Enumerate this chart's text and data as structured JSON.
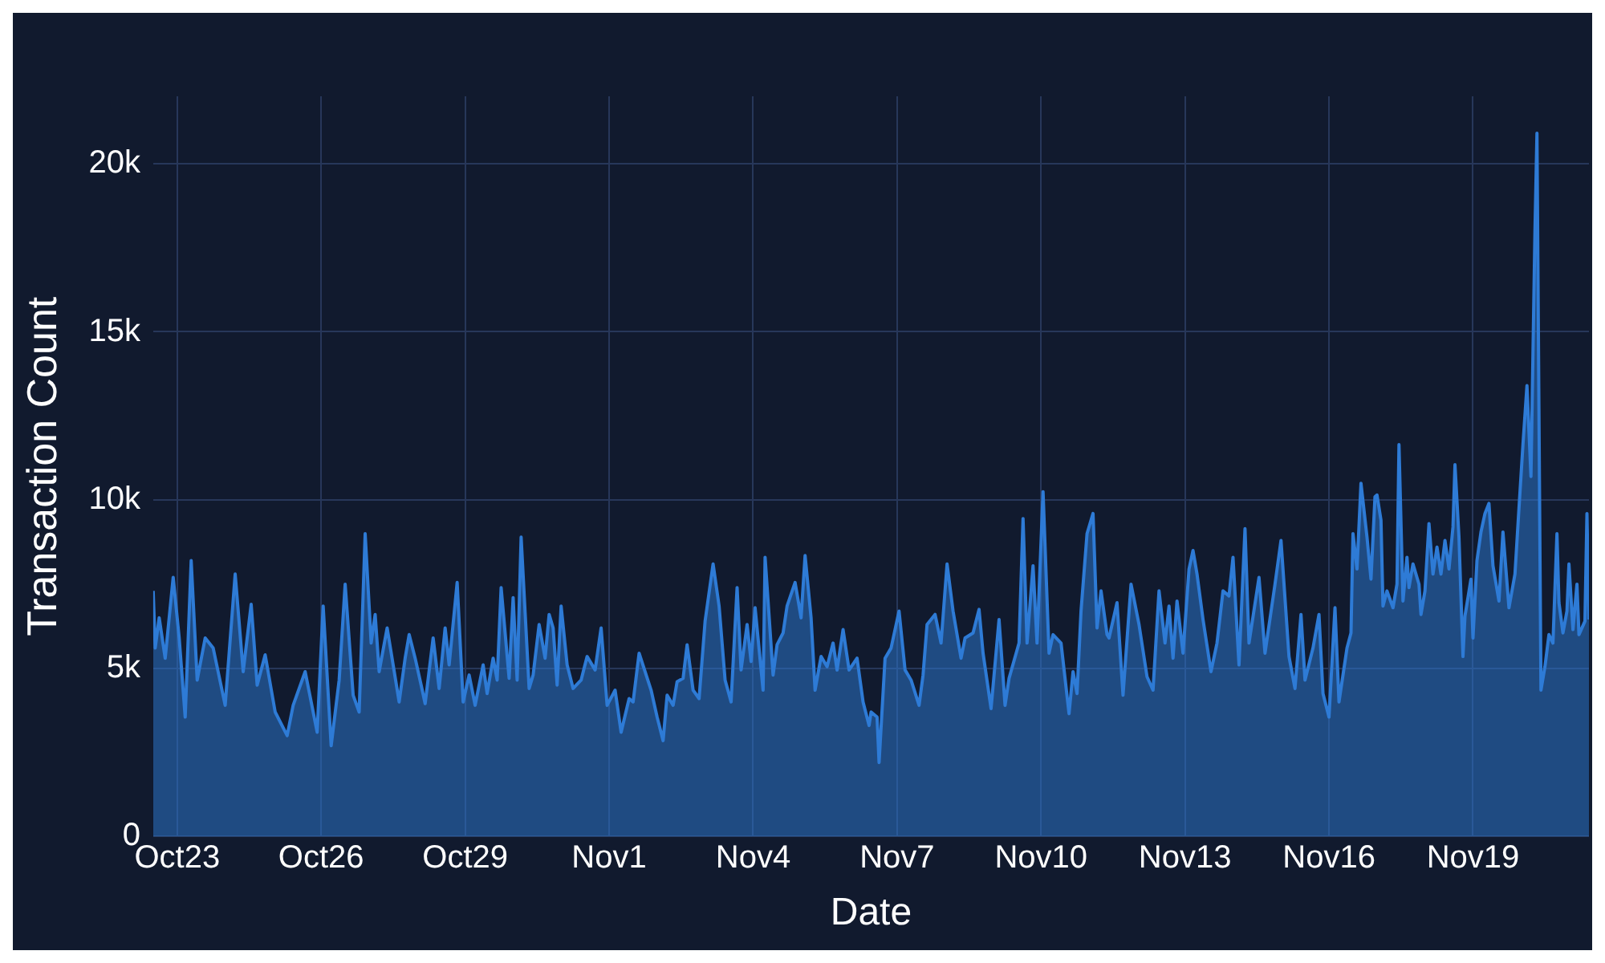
{
  "chart_data": {
    "type": "area",
    "xlabel": "Date",
    "ylabel": "Transaction Count",
    "grid": true,
    "legend": false,
    "marker": "none",
    "xlim": [
      "--10-22T12:00",
      "--11-21T10:00"
    ],
    "xticks": [
      {
        "value": "--10-23",
        "label": "Oct23"
      },
      {
        "value": "--10-26",
        "label": "Oct26"
      },
      {
        "value": "--10-29",
        "label": "Oct29"
      },
      {
        "value": "--11-01",
        "label": "Nov1"
      },
      {
        "value": "--11-04",
        "label": "Nov4"
      },
      {
        "value": "--11-07",
        "label": "Nov7"
      },
      {
        "value": "--11-10",
        "label": "Nov10"
      },
      {
        "value": "--11-13",
        "label": "Nov13"
      },
      {
        "value": "--11-16",
        "label": "Nov16"
      },
      {
        "value": "--11-19",
        "label": "Nov19"
      }
    ],
    "ylim": [
      0,
      22000
    ],
    "yticks": [
      {
        "value": 0,
        "label": "0"
      },
      {
        "value": 5000,
        "label": "5k"
      },
      {
        "value": 10000,
        "label": "10k"
      },
      {
        "value": 15000,
        "label": "15k"
      },
      {
        "value": 20000,
        "label": "20k"
      }
    ],
    "series": [
      {
        "color": "#2e7bd6",
        "x": [
          "--10-22T12:00",
          "--10-22T13:00",
          "--10-22T15:00",
          "--10-22T18:00",
          "--10-22T22:00",
          "--10-23T01:00",
          "--10-23T04:00",
          "--10-23T07:00",
          "--10-23T10:00",
          "--10-23T14:00",
          "--10-23T18:00",
          "--10-24T00:00",
          "--10-24T05:00",
          "--10-24T09:00",
          "--10-24T13:00",
          "--10-24T16:00",
          "--10-24T20:00",
          "--10-25T01:00",
          "--10-25T07:00",
          "--10-25T10:00",
          "--10-25T16:00",
          "--10-25T22:00",
          "--10-26T01:00",
          "--10-26T05:00",
          "--10-26T09:00",
          "--10-26T12:00",
          "--10-26T16:00",
          "--10-26T19:00",
          "--10-26T22:00",
          "--10-27T01:00",
          "--10-27T03:00",
          "--10-27T05:00",
          "--10-27T09:00",
          "--10-27T15:00",
          "--10-27T18:00",
          "--10-27T20:00",
          "--10-27T23:00",
          "--10-28T02:00",
          "--10-28T04:00",
          "--10-28T08:00",
          "--10-28T11:00",
          "--10-28T14:00",
          "--10-28T16:00",
          "--10-28T20:00",
          "--10-28T23:00",
          "--10-29T02:00",
          "--10-29T05:00",
          "--10-29T09:00",
          "--10-29T11:00",
          "--10-29T14:00",
          "--10-29T16:00",
          "--10-29T18:00",
          "--10-29T22:00",
          "--10-30T00:00",
          "--10-30T02:00",
          "--10-30T04:00",
          "--10-30T08:00",
          "--10-30T10:00",
          "--10-30T13:00",
          "--10-30T16:00",
          "--10-30T18:00",
          "--10-30T20:00",
          "--10-30T22:00",
          "--10-31T00:00",
          "--10-31T03:00",
          "--10-31T06:00",
          "--10-31T10:00",
          "--10-31T13:00",
          "--10-31T17:00",
          "--10-31T20:00",
          "--10-31T23:00",
          "--11-01T03:00",
          "--11-01T06:00",
          "--11-01T10:00",
          "--11-01T12:00",
          "--11-01T15:00",
          "--11-01T21:00",
          "--11-02T00:00",
          "--11-02T03:00",
          "--11-02T05:00",
          "--11-02T08:00",
          "--11-02T10:00",
          "--11-02T13:00",
          "--11-02T15:00",
          "--11-02T18:00",
          "--11-02T21:00",
          "--11-03T00:00",
          "--11-03T04:00",
          "--11-03T07:00",
          "--11-03T10:00",
          "--11-03T13:00",
          "--11-03T16:00",
          "--11-03T18:00",
          "--11-03T21:00",
          "--11-03T23:00",
          "--11-04T01:00",
          "--11-04T05:00",
          "--11-04T06:00",
          "--11-04T10:00",
          "--11-04T12:00",
          "--11-04T15:00",
          "--11-04T17:00",
          "--11-04T21:00",
          "--11-05T00:00",
          "--11-05T02:00",
          "--11-05T05:00",
          "--11-05T07:00",
          "--11-05T10:00",
          "--11-05T13:00",
          "--11-05T16:00",
          "--11-05T18:00",
          "--11-05T21:00",
          "--11-06T00:00",
          "--11-06T04:00",
          "--11-06T07:00",
          "--11-06T10:00",
          "--11-06T11:00",
          "--11-06T14:00",
          "--11-06T15:00",
          "--11-06T18:00",
          "--11-06T21:00",
          "--11-07T01:00",
          "--11-07T04:00",
          "--11-07T07:00",
          "--11-07T11:00",
          "--11-07T13:00",
          "--11-07T15:00",
          "--11-07T19:00",
          "--11-07T22:00",
          "--11-08T01:00",
          "--11-08T04:00",
          "--11-08T08:00",
          "--11-08T10:00",
          "--11-08T14:00",
          "--11-08T17:00",
          "--11-08T19:00",
          "--11-08T23:00",
          "--11-09T03:00",
          "--11-09T06:00",
          "--11-09T08:00",
          "--11-09T13:00",
          "--11-09T15:00",
          "--11-09T17:00",
          "--11-09T20:00",
          "--11-09T22:00",
          "--11-10T01:00",
          "--11-10T04:00",
          "--11-10T06:00",
          "--11-10T10:00",
          "--11-10T14:00",
          "--11-10T16:00",
          "--11-10T18:00",
          "--11-10T20:00",
          "--11-10T23:00",
          "--11-11T02:00",
          "--11-11T04:00",
          "--11-11T06:00",
          "--11-11T09:00",
          "--11-11T10:00",
          "--11-11T14:00",
          "--11-11T17:00",
          "--11-11T21:00",
          "--11-12T01:00",
          "--11-12T05:00",
          "--11-12T08:00",
          "--11-12T11:00",
          "--11-12T14:00",
          "--11-12T16:00",
          "--11-12T18:00",
          "--11-12T20:00",
          "--11-12T23:00",
          "--11-13T02:00",
          "--11-13T04:00",
          "--11-13T06:00",
          "--11-13T09:00",
          "--11-13T13:00",
          "--11-13T16:00",
          "--11-13T19:00",
          "--11-13T22:00",
          "--11-14T00:00",
          "--11-14T03:00",
          "--11-14T06:00",
          "--11-14T08:00",
          "--11-14T13:00",
          "--11-14T16:00",
          "--11-14T21:00",
          "--11-15T00:00",
          "--11-15T04:00",
          "--11-15T07:00",
          "--11-15T10:00",
          "--11-15T12:00",
          "--11-15T16:00",
          "--11-15T19:00",
          "--11-15T21:00",
          "--11-16T00:00",
          "--11-16T03:00",
          "--11-16T05:00",
          "--11-16T09:00",
          "--11-16T11:00",
          "--11-16T12:00",
          "--11-16T14:00",
          "--11-16T16:00",
          "--11-16T19:00",
          "--11-16T21:00",
          "--11-16T23:00",
          "--11-17T00:00",
          "--11-17T02:00",
          "--11-17T03:00",
          "--11-17T05:00",
          "--11-17T08:00",
          "--11-17T10:00",
          "--11-17T11:00",
          "--11-17T13:00",
          "--11-17T15:00",
          "--11-17T16:00",
          "--11-17T18:00",
          "--11-17T21:00",
          "--11-17T22:00",
          "--11-18T00:00",
          "--11-18T02:00",
          "--11-18T04:00",
          "--11-18T06:00",
          "--11-18T08:00",
          "--11-18T10:00",
          "--11-18T12:00",
          "--11-18T14:00",
          "--11-18T15:00",
          "--11-18T17:00",
          "--11-18T19:00",
          "--11-18T20:00",
          "--11-18T23:00",
          "--11-19T00:00",
          "--11-19T02:00",
          "--11-19T04:00",
          "--11-19T06:00",
          "--11-19T08:00",
          "--11-19T10:00",
          "--11-19T13:00",
          "--11-19T15:00",
          "--11-19T18:00",
          "--11-19T21:00",
          "--11-19T23:00",
          "--11-20T01:00",
          "--11-20T03:00",
          "--11-20T05:00",
          "--11-20T06:00",
          "--11-20T07:00",
          "--11-20T08:00",
          "--11-20T10:00",
          "--11-20T12:00",
          "--11-20T14:00",
          "--11-20T16:00",
          "--11-20T18:00",
          "--11-20T19:00",
          "--11-20T21:00",
          "--11-20T23:00",
          "--11-21T00:00",
          "--11-21T02:00",
          "--11-21T04:00",
          "--11-21T05:00",
          "--11-21T08:00",
          "--11-21T09:00",
          "--11-21T10:00"
        ],
        "values": [
          7300,
          5600,
          6500,
          5300,
          7700,
          5900,
          3550,
          8200,
          4650,
          5900,
          5600,
          3900,
          7800,
          4900,
          6900,
          4500,
          5400,
          3700,
          3000,
          3900,
          4900,
          3100,
          6850,
          2700,
          4650,
          7500,
          4200,
          3700,
          9000,
          5750,
          6600,
          4900,
          6200,
          4000,
          5300,
          6000,
          5300,
          4500,
          3950,
          5900,
          4400,
          6200,
          5100,
          7550,
          4000,
          4800,
          3900,
          5100,
          4250,
          5300,
          4650,
          7400,
          4700,
          7100,
          4650,
          8900,
          4400,
          4800,
          6300,
          5300,
          6600,
          6200,
          4500,
          6850,
          5100,
          4400,
          4650,
          5350,
          4950,
          6200,
          3900,
          4350,
          3100,
          4100,
          4000,
          5450,
          4350,
          3550,
          2850,
          4200,
          3900,
          4600,
          4700,
          5700,
          4350,
          4100,
          6400,
          8100,
          6850,
          4650,
          4000,
          7400,
          4950,
          6300,
          5200,
          6800,
          4350,
          8300,
          4800,
          5700,
          6050,
          6850,
          7550,
          6500,
          8350,
          6500,
          4350,
          5350,
          5050,
          5750,
          4950,
          6150,
          4950,
          5300,
          4000,
          3300,
          3700,
          3550,
          2200,
          5300,
          5600,
          6700,
          4950,
          4650,
          3900,
          4800,
          6300,
          6600,
          5750,
          8100,
          6700,
          5300,
          5900,
          6050,
          6750,
          5450,
          3800,
          6450,
          3900,
          4700,
          5750,
          9450,
          5750,
          8050,
          5750,
          10250,
          5450,
          6000,
          5750,
          3650,
          4900,
          4250,
          6700,
          9000,
          9600,
          6200,
          7300,
          6000,
          5900,
          6950,
          4200,
          7500,
          6300,
          4750,
          4350,
          7300,
          5750,
          6850,
          5300,
          7000,
          5450,
          7950,
          8500,
          7800,
          6450,
          4900,
          5750,
          7300,
          7150,
          8300,
          5100,
          9150,
          5750,
          7700,
          5450,
          7500,
          8800,
          5350,
          4400,
          6600,
          4650,
          5600,
          6600,
          4250,
          3550,
          6800,
          4000,
          5600,
          6050,
          9000,
          7950,
          10500,
          8900,
          7650,
          10100,
          10150,
          9400,
          6850,
          7300,
          6800,
          7500,
          11650,
          7000,
          8300,
          7400,
          8100,
          7500,
          6600,
          7300,
          9300,
          7800,
          8600,
          7800,
          8800,
          7950,
          9200,
          11050,
          8900,
          5350,
          6550,
          7650,
          5900,
          8200,
          9050,
          9600,
          9900,
          8050,
          7000,
          9050,
          6800,
          7800,
          9750,
          11650,
          13400,
          10700,
          14350,
          18000,
          20900,
          4350,
          5050,
          6000,
          5750,
          9000,
          6950,
          6050,
          6700,
          8100,
          6150,
          7500,
          6000,
          6400,
          9600,
          6450
        ]
      }
    ]
  }
}
